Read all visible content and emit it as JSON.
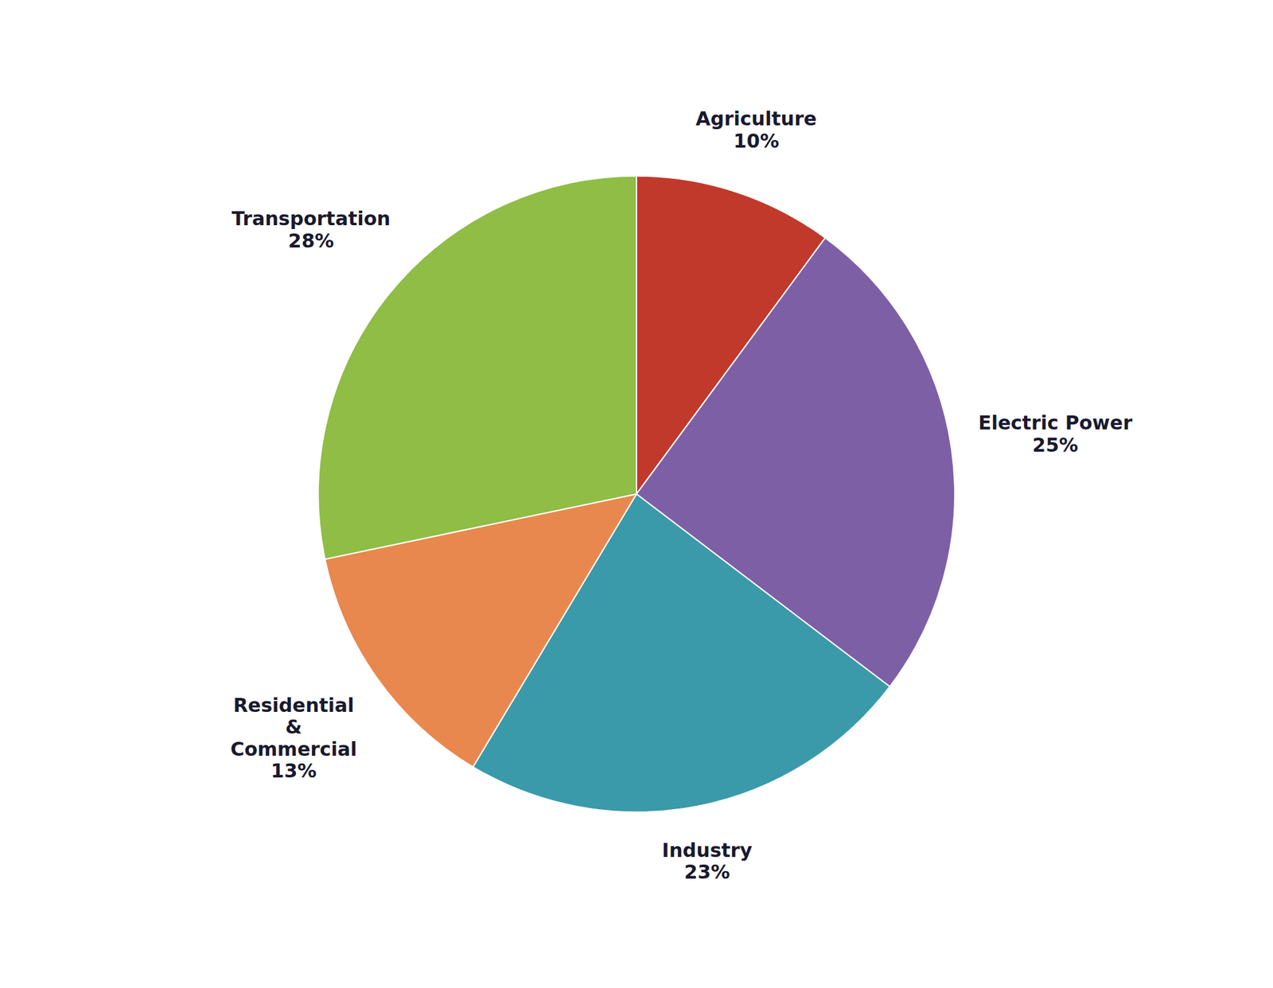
{
  "chart_data": {
    "type": "pie",
    "categories": [
      "Agriculture",
      "Electric Power",
      "Industry",
      "Residential\n&\nCommercial",
      "Transportation"
    ],
    "values": [
      10,
      25,
      23,
      13,
      28
    ],
    "value_labels": [
      "10%",
      "25%",
      "23%",
      "13%",
      "28%"
    ],
    "colors": [
      "#c0392b",
      "#7d5fa6",
      "#3a9aaa",
      "#e8884e",
      "#8fbd45"
    ],
    "data_labels": true
  }
}
